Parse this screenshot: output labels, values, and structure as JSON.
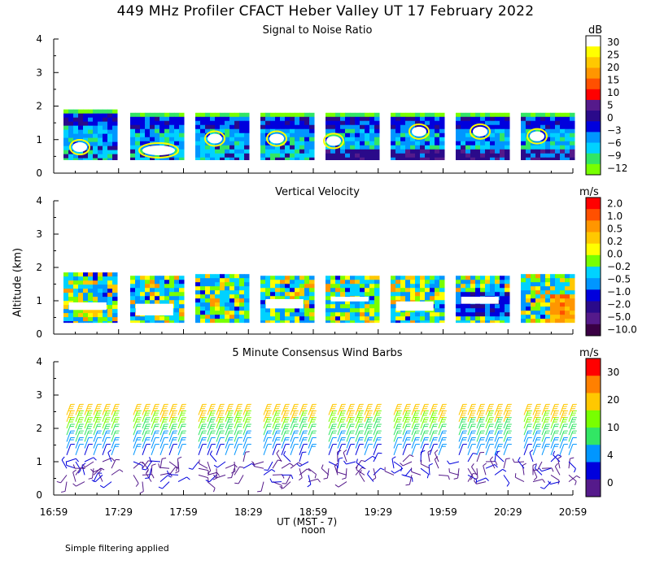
{
  "title": "449 MHz Profiler CFACT Heber Valley UT 17 February 2022",
  "ylabel": "Altitude (km)",
  "xlabel": "UT  (MST - 7)",
  "noon_label": "noon",
  "footer": "Simple filtering applied",
  "x_ticks": [
    "16:59",
    "17:29",
    "17:59",
    "18:29",
    "18:59",
    "19:29",
    "19:59",
    "20:29",
    "20:59"
  ],
  "y_ticks": [
    "0",
    "1",
    "2",
    "3",
    "4"
  ],
  "chart_data": [
    {
      "type": "heatmap",
      "title": "Signal to Noise Ratio",
      "unit": "dB",
      "ylim": [
        0,
        4
      ],
      "colorbar_labels": [
        "30",
        "25",
        "20",
        "15",
        "10",
        "5",
        "0",
        "−3",
        "−6",
        "−9",
        "−12"
      ],
      "colorbar_colors": [
        "#ffffff",
        "#ffff00",
        "#ffc800",
        "#ff9600",
        "#ff5000",
        "#ff0000",
        "#551a8b",
        "#2a0a8a",
        "#0000dd",
        "#0096ff",
        "#00d2ff",
        "#32e664",
        "#78ff00"
      ],
      "segments": [
        {
          "top_km": 1.9,
          "bottom_km": 0.4
        },
        {
          "top_km": 1.8,
          "bottom_km": 0.4
        },
        {
          "top_km": 1.8,
          "bottom_km": 0.4
        },
        {
          "top_km": 1.8,
          "bottom_km": 0.4
        },
        {
          "top_km": 1.8,
          "bottom_km": 0.4
        },
        {
          "top_km": 1.8,
          "bottom_km": 0.4
        },
        {
          "top_km": 1.8,
          "bottom_km": 0.4
        },
        {
          "top_km": 1.8,
          "bottom_km": 0.4
        }
      ]
    },
    {
      "type": "heatmap",
      "title": "Vertical Velocity",
      "unit": "m/s",
      "ylim": [
        0,
        4
      ],
      "colorbar_labels": [
        "2.0",
        "1.0",
        "0.5",
        "0.2",
        "0.0",
        "−0.2",
        "−0.5",
        "−1.0",
        "−2.0",
        "−5.0",
        "−10.0"
      ],
      "colorbar_colors": [
        "#ff0000",
        "#ff5000",
        "#ff9600",
        "#ffc800",
        "#ffff00",
        "#78ff00",
        "#00d2ff",
        "#0096ff",
        "#0000dd",
        "#2a0a8a",
        "#551a8b",
        "#3a0044"
      ],
      "segments": [
        {
          "top_km": 1.85,
          "bottom_km": 0.35
        },
        {
          "top_km": 1.75,
          "bottom_km": 0.35
        },
        {
          "top_km": 1.8,
          "bottom_km": 0.35
        },
        {
          "top_km": 1.75,
          "bottom_km": 0.35
        },
        {
          "top_km": 1.75,
          "bottom_km": 0.35
        },
        {
          "top_km": 1.75,
          "bottom_km": 0.35
        },
        {
          "top_km": 1.75,
          "bottom_km": 0.35
        },
        {
          "top_km": 1.8,
          "bottom_km": 0.35
        }
      ]
    },
    {
      "type": "scatter",
      "title": "5 Minute Consensus Wind Barbs",
      "unit": "m/s",
      "ylim": [
        0,
        4
      ],
      "colorbar_labels": [
        "30",
        "20",
        "10",
        "4",
        "0"
      ],
      "colorbar_colors": [
        "#ff0000",
        "#ff8000",
        "#ffc800",
        "#78ff00",
        "#32e664",
        "#0096ff",
        "#0000dd",
        "#551a8b"
      ],
      "heights_km": [
        0.4,
        0.6,
        0.8,
        1.0,
        1.2,
        1.4,
        1.6,
        1.8,
        2.0,
        2.2,
        2.4
      ],
      "speed_by_height_ms": [
        3,
        3,
        3,
        4,
        6,
        8,
        10,
        12,
        15,
        18,
        20
      ]
    }
  ]
}
